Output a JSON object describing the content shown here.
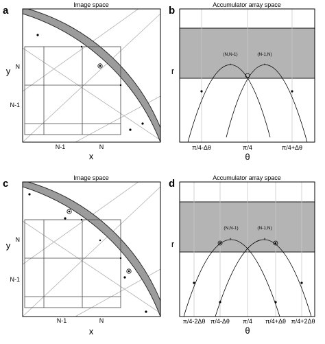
{
  "panels": {
    "a": {
      "letter": "a",
      "title": "Image space",
      "xlabel": "x",
      "ylabel": "y",
      "x_ticks": [
        "N-1",
        "N"
      ],
      "y_ticks": [
        "N",
        "N-1"
      ]
    },
    "b": {
      "letter": "b",
      "title": "Accumulator array space",
      "xlabel": "θ",
      "ylabel": "r",
      "ticks": [
        "π/4-Δθ",
        "π/4",
        "π/4+Δθ"
      ],
      "labels": [
        "(N,N-1)",
        "(N-1,N)"
      ]
    },
    "c": {
      "letter": "c",
      "title": "Image space",
      "xlabel": "x",
      "ylabel": "y",
      "x_ticks": [
        "N-1",
        "N"
      ],
      "y_ticks": [
        "N",
        "N-1"
      ]
    },
    "d": {
      "letter": "d",
      "title": "Accumulator array space",
      "xlabel": "θ",
      "ylabel": "r",
      "ticks": [
        "π/4-2Δθ",
        "π/4-Δθ",
        "π/4",
        "π/4+Δθ",
        "π/4+2Δθ"
      ],
      "labels": [
        "(N,N-1)",
        "(N-1,N)"
      ]
    }
  },
  "colors": {
    "band": "#9c9c9c",
    "accumulator": "#b4b4b4"
  }
}
